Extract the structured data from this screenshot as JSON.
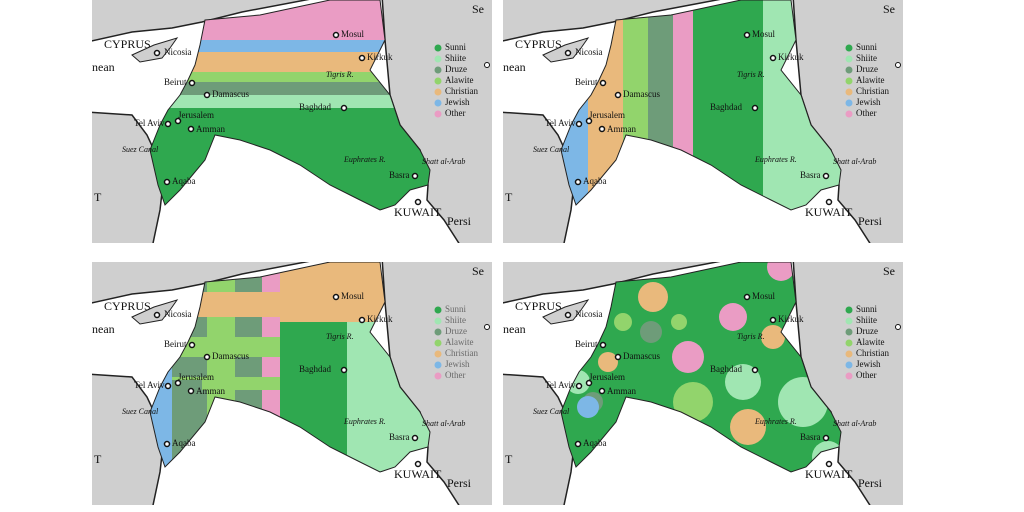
{
  "labels": {
    "cyprus": "CYPRUS",
    "nicosia": "Nicosia",
    "sea_west": "nean",
    "beirut": "Beirut",
    "damascus": "Damascus",
    "tel_aviv": "Tel Aviv",
    "jerusalem": "Jerusalem",
    "amman": "Amman",
    "suez": "Suez Canal",
    "aqaba": "Aqaba",
    "mosul": "Mosul",
    "kirkuk": "Kirkuk",
    "tigris": "Tigris R.",
    "baghdad": "Baghdad",
    "euphrates": "Euphrates R.",
    "basra": "Basra",
    "shatt": "Shatt al-Arab",
    "kuwait": "KUWAIT",
    "persian": "Persi",
    "sea_east": "Se",
    "t_left": "T"
  },
  "legend": [
    {
      "label": "Sunni",
      "color": "#2fa84f"
    },
    {
      "label": "Shiite",
      "color": "#a0e6b2"
    },
    {
      "label": "Druze",
      "color": "#6e9c79"
    },
    {
      "label": "Alawite",
      "color": "#92d46c"
    },
    {
      "label": "Christian",
      "color": "#e9b97c"
    },
    {
      "label": "Jewish",
      "color": "#7db7e6"
    },
    {
      "label": "Other",
      "color": "#ea9cc4"
    }
  ]
}
